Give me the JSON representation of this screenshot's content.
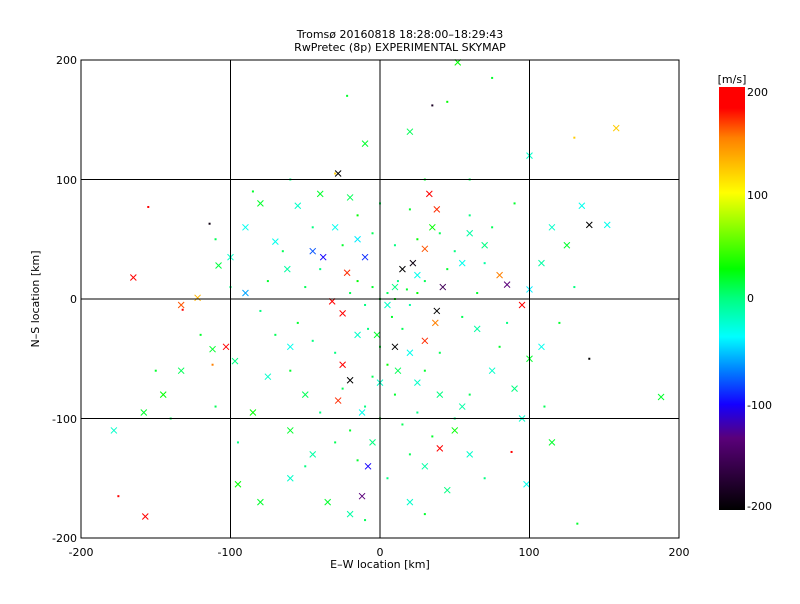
{
  "chart_data": {
    "type": "scatter",
    "title": "Tromsø 20160818 18:28:00–18:29:43",
    "subtitle": "RwPretec (8p) EXPERIMENTAL SKYMAP",
    "xlabel": "E–W location [km]",
    "ylabel": "N–S location [km]",
    "xlim": [
      -200,
      200
    ],
    "ylim": [
      -200,
      200
    ],
    "xticks": [
      "-200",
      "-100",
      "0",
      "100",
      "200"
    ],
    "yticks": [
      "-200",
      "-100",
      "0",
      "100",
      "200"
    ],
    "grid": true,
    "colorbar": {
      "label": "[m/s]",
      "range": [
        -200,
        200
      ],
      "ticks": [
        "200",
        "100",
        "0",
        "-100",
        "-200"
      ],
      "colormap": [
        "#000000",
        "#5a007a",
        "#0000ff",
        "#00c8ff",
        "#00ffff",
        "#00ff80",
        "#00ff00",
        "#ffff00",
        "#ff8000",
        "#ff0000"
      ]
    },
    "series_note": "points: [x_km, y_km, velocity_m_s]",
    "crosses": [
      [
        -165,
        18,
        180
      ],
      [
        -157,
        -182,
        190
      ],
      [
        -122,
        1,
        130
      ],
      [
        -133,
        -5,
        160
      ],
      [
        -103,
        -40,
        180
      ],
      [
        -178,
        -110,
        -20
      ],
      [
        -158,
        -95,
        20
      ],
      [
        -145,
        -80,
        30
      ],
      [
        -133,
        -60,
        10
      ],
      [
        -112,
        -42,
        20
      ],
      [
        -97,
        -52,
        0
      ],
      [
        -108,
        28,
        15
      ],
      [
        -100,
        35,
        -20
      ],
      [
        -90,
        5,
        -60
      ],
      [
        -70,
        48,
        -30
      ],
      [
        -62,
        25,
        -10
      ],
      [
        -45,
        40,
        -80
      ],
      [
        -38,
        35,
        -100
      ],
      [
        -28,
        105,
        -200
      ],
      [
        -40,
        88,
        20
      ],
      [
        -55,
        78,
        -20
      ],
      [
        -20,
        85,
        10
      ],
      [
        -30,
        60,
        -30
      ],
      [
        -15,
        50,
        -40
      ],
      [
        -10,
        35,
        -90
      ],
      [
        -22,
        22,
        170
      ],
      [
        -32,
        -2,
        200
      ],
      [
        -25,
        -12,
        180
      ],
      [
        -15,
        -30,
        -20
      ],
      [
        -25,
        -55,
        190
      ],
      [
        -20,
        -68,
        -200
      ],
      [
        -28,
        -85,
        170
      ],
      [
        -12,
        -95,
        -30
      ],
      [
        -5,
        -120,
        0
      ],
      [
        -8,
        -140,
        -100
      ],
      [
        -12,
        -165,
        -130
      ],
      [
        -20,
        -180,
        -10
      ],
      [
        -35,
        -170,
        20
      ],
      [
        -60,
        -150,
        -20
      ],
      [
        -80,
        -170,
        20
      ],
      [
        -95,
        -155,
        30
      ],
      [
        -85,
        -95,
        30
      ],
      [
        -60,
        -110,
        20
      ],
      [
        -45,
        -130,
        -10
      ],
      [
        5,
        -5,
        -20
      ],
      [
        10,
        10,
        0
      ],
      [
        15,
        25,
        -200
      ],
      [
        22,
        30,
        -190
      ],
      [
        25,
        20,
        -30
      ],
      [
        30,
        42,
        160
      ],
      [
        35,
        60,
        30
      ],
      [
        38,
        75,
        170
      ],
      [
        33,
        88,
        190
      ],
      [
        42,
        10,
        -150
      ],
      [
        38,
        -10,
        -200
      ],
      [
        37,
        -20,
        150
      ],
      [
        30,
        -35,
        170
      ],
      [
        20,
        -45,
        -30
      ],
      [
        12,
        -60,
        10
      ],
      [
        25,
        -70,
        -20
      ],
      [
        40,
        -80,
        0
      ],
      [
        55,
        -90,
        -10
      ],
      [
        50,
        -110,
        30
      ],
      [
        40,
        -125,
        180
      ],
      [
        30,
        -140,
        -10
      ],
      [
        45,
        -160,
        0
      ],
      [
        20,
        -170,
        -20
      ],
      [
        55,
        30,
        -30
      ],
      [
        60,
        55,
        -10
      ],
      [
        70,
        45,
        0
      ],
      [
        80,
        20,
        150
      ],
      [
        85,
        12,
        -130
      ],
      [
        95,
        -5,
        180
      ],
      [
        100,
        -50,
        20
      ],
      [
        108,
        -40,
        -30
      ],
      [
        90,
        -75,
        0
      ],
      [
        95,
        -100,
        -20
      ],
      [
        115,
        -120,
        20
      ],
      [
        98,
        -155,
        -30
      ],
      [
        100,
        120,
        -20
      ],
      [
        140,
        62,
        -200
      ],
      [
        152,
        62,
        -30
      ],
      [
        135,
        78,
        -30
      ],
      [
        125,
        45,
        20
      ],
      [
        115,
        60,
        -20
      ],
      [
        108,
        30,
        -10
      ],
      [
        100,
        8,
        -40
      ],
      [
        188,
        -82,
        20
      ],
      [
        52,
        198,
        30
      ],
      [
        158,
        143,
        120
      ],
      [
        10,
        -40,
        -200
      ],
      [
        0,
        -70,
        -20
      ],
      [
        -2,
        -30,
        20
      ],
      [
        60,
        -130,
        -20
      ],
      [
        75,
        -60,
        -20
      ],
      [
        65,
        -25,
        -10
      ],
      [
        -60,
        -40,
        -30
      ],
      [
        -75,
        -65,
        -20
      ],
      [
        -50,
        -80,
        10
      ],
      [
        -80,
        80,
        20
      ],
      [
        -90,
        60,
        -30
      ],
      [
        -10,
        130,
        20
      ],
      [
        20,
        140,
        10
      ]
    ],
    "dots": [
      [
        -155,
        77,
        190
      ],
      [
        -114,
        63,
        -190
      ],
      [
        -132,
        -9,
        180
      ],
      [
        -112,
        -55,
        150
      ],
      [
        -175,
        -165,
        180
      ],
      [
        35,
        162,
        -180
      ],
      [
        140,
        -50,
        -200
      ],
      [
        -22,
        170,
        20
      ],
      [
        45,
        165,
        30
      ],
      [
        75,
        185,
        20
      ],
      [
        130,
        135,
        120
      ],
      [
        -30,
        105,
        120
      ],
      [
        88,
        -128,
        180
      ],
      [
        132,
        -188,
        20
      ],
      [
        0,
        0,
        20
      ],
      [
        5,
        5,
        10
      ],
      [
        10,
        0,
        30
      ],
      [
        12,
        15,
        0
      ],
      [
        18,
        8,
        20
      ],
      [
        20,
        -5,
        -10
      ],
      [
        25,
        5,
        30
      ],
      [
        30,
        15,
        10
      ],
      [
        -5,
        10,
        20
      ],
      [
        -10,
        -5,
        0
      ],
      [
        -15,
        15,
        30
      ],
      [
        -20,
        5,
        10
      ],
      [
        8,
        -15,
        20
      ],
      [
        15,
        -25,
        10
      ],
      [
        -8,
        -25,
        0
      ],
      [
        0,
        -40,
        20
      ],
      [
        5,
        -55,
        30
      ],
      [
        -5,
        -65,
        10
      ],
      [
        10,
        -80,
        20
      ],
      [
        -10,
        -90,
        0
      ],
      [
        0,
        -100,
        30
      ],
      [
        15,
        -105,
        10
      ],
      [
        -20,
        -110,
        20
      ],
      [
        25,
        -95,
        0
      ],
      [
        -25,
        -75,
        10
      ],
      [
        30,
        -60,
        20
      ],
      [
        -30,
        -45,
        0
      ],
      [
        40,
        -45,
        10
      ],
      [
        45,
        25,
        20
      ],
      [
        50,
        40,
        0
      ],
      [
        40,
        55,
        10
      ],
      [
        25,
        50,
        30
      ],
      [
        10,
        45,
        0
      ],
      [
        -5,
        55,
        10
      ],
      [
        -25,
        45,
        20
      ],
      [
        -40,
        25,
        0
      ],
      [
        -50,
        10,
        10
      ],
      [
        -55,
        -20,
        20
      ],
      [
        -45,
        -35,
        0
      ],
      [
        55,
        -15,
        10
      ],
      [
        65,
        5,
        20
      ],
      [
        70,
        30,
        -10
      ],
      [
        60,
        70,
        0
      ],
      [
        20,
        75,
        20
      ],
      [
        0,
        80,
        10
      ],
      [
        -15,
        70,
        30
      ],
      [
        -45,
        60,
        0
      ],
      [
        -65,
        40,
        10
      ],
      [
        -75,
        15,
        20
      ],
      [
        -80,
        -10,
        0
      ],
      [
        -70,
        -30,
        10
      ],
      [
        -60,
        -60,
        20
      ],
      [
        -40,
        -95,
        0
      ],
      [
        -30,
        -120,
        10
      ],
      [
        -15,
        -135,
        20
      ],
      [
        5,
        -150,
        0
      ],
      [
        20,
        -130,
        10
      ],
      [
        35,
        -115,
        20
      ],
      [
        50,
        -100,
        0
      ],
      [
        60,
        -80,
        10
      ],
      [
        80,
        -40,
        20
      ],
      [
        85,
        -20,
        0
      ],
      [
        75,
        60,
        10
      ],
      [
        90,
        80,
        20
      ],
      [
        -95,
        -120,
        0
      ],
      [
        -110,
        -90,
        10
      ],
      [
        -120,
        -30,
        20
      ],
      [
        -100,
        10,
        0
      ],
      [
        -110,
        50,
        10
      ],
      [
        -85,
        90,
        20
      ],
      [
        -60,
        100,
        0
      ],
      [
        60,
        100,
        10
      ],
      [
        30,
        100,
        20
      ],
      [
        -50,
        -140,
        0
      ],
      [
        -10,
        -185,
        10
      ],
      [
        30,
        -180,
        20
      ],
      [
        70,
        -150,
        0
      ],
      [
        110,
        -90,
        10
      ],
      [
        120,
        -20,
        20
      ],
      [
        130,
        10,
        0
      ],
      [
        -140,
        -100,
        10
      ],
      [
        -150,
        -60,
        20
      ]
    ]
  }
}
